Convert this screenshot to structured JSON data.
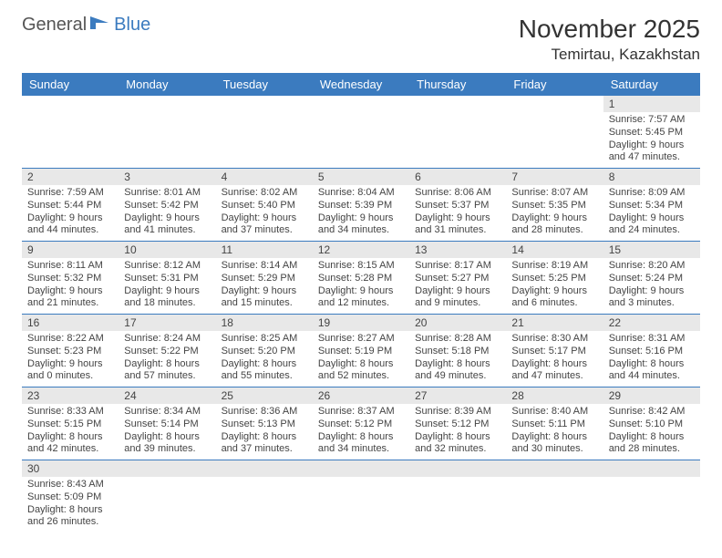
{
  "logo": {
    "general": "General",
    "blue": "Blue"
  },
  "title": "November 2025",
  "location": "Temirtau, Kazakhstan",
  "colors": {
    "header_bg": "#3b7bbf",
    "header_fg": "#ffffff",
    "daynum_bg": "#e8e8e8",
    "week_divider": "#3b7bbf"
  },
  "dayNames": [
    "Sunday",
    "Monday",
    "Tuesday",
    "Wednesday",
    "Thursday",
    "Friday",
    "Saturday"
  ],
  "weeks": [
    [
      {
        "n": "",
        "sr": "",
        "ss": "",
        "dl": ""
      },
      {
        "n": "",
        "sr": "",
        "ss": "",
        "dl": ""
      },
      {
        "n": "",
        "sr": "",
        "ss": "",
        "dl": ""
      },
      {
        "n": "",
        "sr": "",
        "ss": "",
        "dl": ""
      },
      {
        "n": "",
        "sr": "",
        "ss": "",
        "dl": ""
      },
      {
        "n": "",
        "sr": "",
        "ss": "",
        "dl": ""
      },
      {
        "n": "1",
        "sr": "Sunrise: 7:57 AM",
        "ss": "Sunset: 5:45 PM",
        "dl": "Daylight: 9 hours and 47 minutes."
      }
    ],
    [
      {
        "n": "2",
        "sr": "Sunrise: 7:59 AM",
        "ss": "Sunset: 5:44 PM",
        "dl": "Daylight: 9 hours and 44 minutes."
      },
      {
        "n": "3",
        "sr": "Sunrise: 8:01 AM",
        "ss": "Sunset: 5:42 PM",
        "dl": "Daylight: 9 hours and 41 minutes."
      },
      {
        "n": "4",
        "sr": "Sunrise: 8:02 AM",
        "ss": "Sunset: 5:40 PM",
        "dl": "Daylight: 9 hours and 37 minutes."
      },
      {
        "n": "5",
        "sr": "Sunrise: 8:04 AM",
        "ss": "Sunset: 5:39 PM",
        "dl": "Daylight: 9 hours and 34 minutes."
      },
      {
        "n": "6",
        "sr": "Sunrise: 8:06 AM",
        "ss": "Sunset: 5:37 PM",
        "dl": "Daylight: 9 hours and 31 minutes."
      },
      {
        "n": "7",
        "sr": "Sunrise: 8:07 AM",
        "ss": "Sunset: 5:35 PM",
        "dl": "Daylight: 9 hours and 28 minutes."
      },
      {
        "n": "8",
        "sr": "Sunrise: 8:09 AM",
        "ss": "Sunset: 5:34 PM",
        "dl": "Daylight: 9 hours and 24 minutes."
      }
    ],
    [
      {
        "n": "9",
        "sr": "Sunrise: 8:11 AM",
        "ss": "Sunset: 5:32 PM",
        "dl": "Daylight: 9 hours and 21 minutes."
      },
      {
        "n": "10",
        "sr": "Sunrise: 8:12 AM",
        "ss": "Sunset: 5:31 PM",
        "dl": "Daylight: 9 hours and 18 minutes."
      },
      {
        "n": "11",
        "sr": "Sunrise: 8:14 AM",
        "ss": "Sunset: 5:29 PM",
        "dl": "Daylight: 9 hours and 15 minutes."
      },
      {
        "n": "12",
        "sr": "Sunrise: 8:15 AM",
        "ss": "Sunset: 5:28 PM",
        "dl": "Daylight: 9 hours and 12 minutes."
      },
      {
        "n": "13",
        "sr": "Sunrise: 8:17 AM",
        "ss": "Sunset: 5:27 PM",
        "dl": "Daylight: 9 hours and 9 minutes."
      },
      {
        "n": "14",
        "sr": "Sunrise: 8:19 AM",
        "ss": "Sunset: 5:25 PM",
        "dl": "Daylight: 9 hours and 6 minutes."
      },
      {
        "n": "15",
        "sr": "Sunrise: 8:20 AM",
        "ss": "Sunset: 5:24 PM",
        "dl": "Daylight: 9 hours and 3 minutes."
      }
    ],
    [
      {
        "n": "16",
        "sr": "Sunrise: 8:22 AM",
        "ss": "Sunset: 5:23 PM",
        "dl": "Daylight: 9 hours and 0 minutes."
      },
      {
        "n": "17",
        "sr": "Sunrise: 8:24 AM",
        "ss": "Sunset: 5:22 PM",
        "dl": "Daylight: 8 hours and 57 minutes."
      },
      {
        "n": "18",
        "sr": "Sunrise: 8:25 AM",
        "ss": "Sunset: 5:20 PM",
        "dl": "Daylight: 8 hours and 55 minutes."
      },
      {
        "n": "19",
        "sr": "Sunrise: 8:27 AM",
        "ss": "Sunset: 5:19 PM",
        "dl": "Daylight: 8 hours and 52 minutes."
      },
      {
        "n": "20",
        "sr": "Sunrise: 8:28 AM",
        "ss": "Sunset: 5:18 PM",
        "dl": "Daylight: 8 hours and 49 minutes."
      },
      {
        "n": "21",
        "sr": "Sunrise: 8:30 AM",
        "ss": "Sunset: 5:17 PM",
        "dl": "Daylight: 8 hours and 47 minutes."
      },
      {
        "n": "22",
        "sr": "Sunrise: 8:31 AM",
        "ss": "Sunset: 5:16 PM",
        "dl": "Daylight: 8 hours and 44 minutes."
      }
    ],
    [
      {
        "n": "23",
        "sr": "Sunrise: 8:33 AM",
        "ss": "Sunset: 5:15 PM",
        "dl": "Daylight: 8 hours and 42 minutes."
      },
      {
        "n": "24",
        "sr": "Sunrise: 8:34 AM",
        "ss": "Sunset: 5:14 PM",
        "dl": "Daylight: 8 hours and 39 minutes."
      },
      {
        "n": "25",
        "sr": "Sunrise: 8:36 AM",
        "ss": "Sunset: 5:13 PM",
        "dl": "Daylight: 8 hours and 37 minutes."
      },
      {
        "n": "26",
        "sr": "Sunrise: 8:37 AM",
        "ss": "Sunset: 5:12 PM",
        "dl": "Daylight: 8 hours and 34 minutes."
      },
      {
        "n": "27",
        "sr": "Sunrise: 8:39 AM",
        "ss": "Sunset: 5:12 PM",
        "dl": "Daylight: 8 hours and 32 minutes."
      },
      {
        "n": "28",
        "sr": "Sunrise: 8:40 AM",
        "ss": "Sunset: 5:11 PM",
        "dl": "Daylight: 8 hours and 30 minutes."
      },
      {
        "n": "29",
        "sr": "Sunrise: 8:42 AM",
        "ss": "Sunset: 5:10 PM",
        "dl": "Daylight: 8 hours and 28 minutes."
      }
    ],
    [
      {
        "n": "30",
        "sr": "Sunrise: 8:43 AM",
        "ss": "Sunset: 5:09 PM",
        "dl": "Daylight: 8 hours and 26 minutes."
      },
      {
        "n": "",
        "sr": "",
        "ss": "",
        "dl": ""
      },
      {
        "n": "",
        "sr": "",
        "ss": "",
        "dl": ""
      },
      {
        "n": "",
        "sr": "",
        "ss": "",
        "dl": ""
      },
      {
        "n": "",
        "sr": "",
        "ss": "",
        "dl": ""
      },
      {
        "n": "",
        "sr": "",
        "ss": "",
        "dl": ""
      },
      {
        "n": "",
        "sr": "",
        "ss": "",
        "dl": ""
      }
    ]
  ]
}
